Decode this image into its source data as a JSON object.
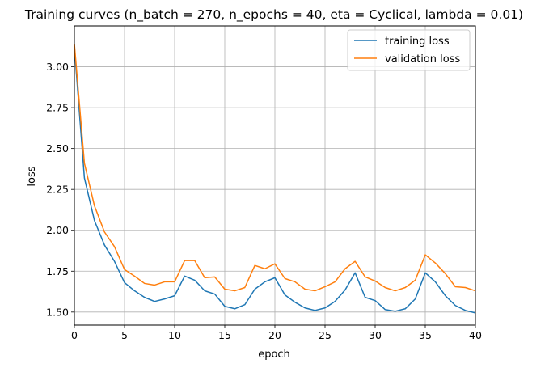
{
  "chart_data": {
    "type": "line",
    "title": "Training curves (n_batch = 270, n_epochs = 40, eta = Cyclical, lambda = 0.01)",
    "xlabel": "epoch",
    "ylabel": "loss",
    "xlim": [
      0,
      40
    ],
    "ylim": [
      1.42,
      3.25
    ],
    "xticks": [
      0,
      5,
      10,
      15,
      20,
      25,
      30,
      35,
      40
    ],
    "xtick_labels": [
      "0",
      "5",
      "10",
      "15",
      "20",
      "25",
      "30",
      "35",
      "40"
    ],
    "yticks": [
      1.5,
      1.75,
      2.0,
      2.25,
      2.5,
      2.75,
      3.0
    ],
    "ytick_labels": [
      "1.50",
      "1.75",
      "2.00",
      "2.25",
      "2.50",
      "2.75",
      "3.00"
    ],
    "grid": true,
    "legend_position": "top-right",
    "x": [
      0,
      1,
      2,
      3,
      4,
      5,
      6,
      7,
      8,
      9,
      10,
      11,
      12,
      13,
      14,
      15,
      16,
      17,
      18,
      19,
      20,
      21,
      22,
      23,
      24,
      25,
      26,
      27,
      28,
      29,
      30,
      31,
      32,
      33,
      34,
      35,
      36,
      37,
      38,
      39,
      40
    ],
    "series": [
      {
        "name": "training loss",
        "color": "#1f77b4",
        "values": [
          3.12,
          2.32,
          2.06,
          1.91,
          1.81,
          1.68,
          1.63,
          1.59,
          1.565,
          1.58,
          1.6,
          1.72,
          1.695,
          1.63,
          1.61,
          1.535,
          1.52,
          1.545,
          1.64,
          1.685,
          1.71,
          1.605,
          1.56,
          1.525,
          1.51,
          1.525,
          1.565,
          1.635,
          1.74,
          1.59,
          1.57,
          1.515,
          1.505,
          1.52,
          1.58,
          1.74,
          1.685,
          1.6,
          1.54,
          1.51,
          1.495
        ]
      },
      {
        "name": "validation loss",
        "color": "#ff7f0e",
        "values": [
          3.14,
          2.41,
          2.15,
          1.99,
          1.9,
          1.76,
          1.72,
          1.675,
          1.665,
          1.685,
          1.685,
          1.815,
          1.815,
          1.71,
          1.715,
          1.64,
          1.63,
          1.65,
          1.785,
          1.765,
          1.795,
          1.705,
          1.685,
          1.64,
          1.63,
          1.655,
          1.685,
          1.765,
          1.81,
          1.715,
          1.69,
          1.65,
          1.63,
          1.65,
          1.695,
          1.85,
          1.8,
          1.735,
          1.655,
          1.65,
          1.63
        ]
      }
    ]
  }
}
